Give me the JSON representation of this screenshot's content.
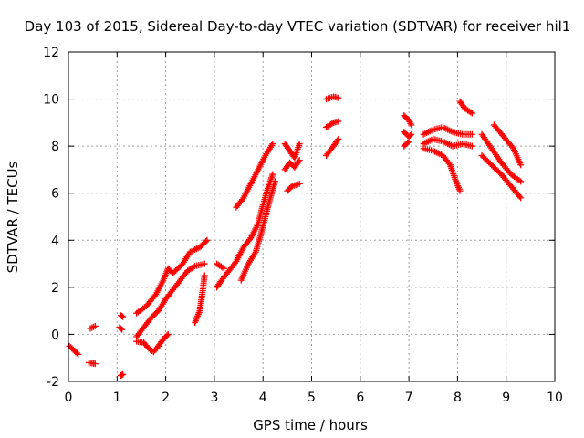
{
  "chart_data": {
    "type": "scatter",
    "title": "Day 103 of 2015, Sidereal Day-to-day VTEC variation (SDTVAR) for receiver hil1",
    "xlabel": "GPS time / hours",
    "ylabel": "SDTVAR / TECUs",
    "xlim": [
      0,
      10
    ],
    "ylim": [
      -2,
      12
    ],
    "xticks": [
      "0",
      "1",
      "2",
      "3",
      "4",
      "5",
      "6",
      "7",
      "8",
      "9",
      "10"
    ],
    "yticks": [
      "-2",
      "0",
      "2",
      "4",
      "6",
      "8",
      "10",
      "12"
    ],
    "grid": true,
    "marker": "+",
    "series": [
      {
        "name": "SDTVAR",
        "color": "#ff0000",
        "segments": [
          [
            [
              0.02,
              -0.5
            ],
            [
              0.1,
              -0.65
            ],
            [
              0.2,
              -0.85
            ]
          ],
          [
            [
              0.45,
              0.25
            ],
            [
              0.55,
              0.35
            ]
          ],
          [
            [
              0.42,
              -1.2
            ],
            [
              0.55,
              -1.25
            ]
          ],
          [
            [
              1.08,
              0.8
            ],
            [
              1.12,
              0.75
            ]
          ],
          [
            [
              1.05,
              0.3
            ],
            [
              1.1,
              0.2
            ]
          ],
          [
            [
              1.08,
              -1.75
            ],
            [
              1.12,
              -1.7
            ]
          ],
          [
            [
              1.4,
              0.9
            ],
            [
              1.6,
              1.2
            ],
            [
              1.8,
              1.7
            ],
            [
              1.95,
              2.3
            ],
            [
              2.05,
              2.8
            ],
            [
              2.15,
              2.6
            ],
            [
              2.35,
              3.0
            ],
            [
              2.5,
              3.5
            ],
            [
              2.7,
              3.7
            ],
            [
              2.85,
              4.0
            ]
          ],
          [
            [
              1.4,
              -0.1
            ],
            [
              1.55,
              0.3
            ],
            [
              1.7,
              0.7
            ],
            [
              1.85,
              1.0
            ],
            [
              2.0,
              1.5
            ],
            [
              2.15,
              1.9
            ],
            [
              2.3,
              2.3
            ],
            [
              2.45,
              2.7
            ],
            [
              2.6,
              2.9
            ],
            [
              2.8,
              3.0
            ]
          ],
          [
            [
              1.4,
              -0.3
            ],
            [
              1.55,
              -0.35
            ],
            [
              1.65,
              -0.6
            ],
            [
              1.75,
              -0.75
            ],
            [
              1.85,
              -0.5
            ],
            [
              1.95,
              -0.2
            ],
            [
              2.05,
              0.0
            ]
          ],
          [
            [
              2.6,
              0.5
            ],
            [
              2.7,
              1.0
            ],
            [
              2.75,
              1.7
            ],
            [
              2.8,
              2.5
            ]
          ],
          [
            [
              3.05,
              2.0
            ],
            [
              3.15,
              2.3
            ],
            [
              3.3,
              2.7
            ],
            [
              3.45,
              3.1
            ],
            [
              3.6,
              3.7
            ],
            [
              3.75,
              4.1
            ],
            [
              3.9,
              4.7
            ],
            [
              4.0,
              5.5
            ],
            [
              4.1,
              6.2
            ],
            [
              4.2,
              6.8
            ]
          ],
          [
            [
              3.05,
              3.0
            ],
            [
              3.2,
              2.8
            ]
          ],
          [
            [
              3.45,
              5.4
            ],
            [
              3.6,
              5.8
            ],
            [
              3.75,
              6.4
            ],
            [
              3.9,
              7.0
            ],
            [
              4.05,
              7.6
            ],
            [
              4.2,
              8.1
            ]
          ],
          [
            [
              3.55,
              2.3
            ],
            [
              3.7,
              3.0
            ],
            [
              3.85,
              3.5
            ],
            [
              3.95,
              4.2
            ],
            [
              4.05,
              5.0
            ],
            [
              4.15,
              5.8
            ],
            [
              4.25,
              6.5
            ]
          ],
          [
            [
              4.45,
              8.1
            ],
            [
              4.55,
              7.8
            ],
            [
              4.65,
              7.5
            ],
            [
              4.75,
              8.1
            ]
          ],
          [
            [
              4.45,
              7.0
            ],
            [
              4.55,
              7.3
            ],
            [
              4.65,
              7.1
            ],
            [
              4.75,
              7.4
            ]
          ],
          [
            [
              4.5,
              6.1
            ],
            [
              4.6,
              6.3
            ],
            [
              4.75,
              6.4
            ]
          ],
          [
            [
              5.3,
              10.0
            ],
            [
              5.45,
              10.1
            ],
            [
              5.55,
              10.05
            ]
          ],
          [
            [
              5.3,
              8.8
            ],
            [
              5.45,
              9.0
            ],
            [
              5.55,
              9.05
            ]
          ],
          [
            [
              5.3,
              7.6
            ],
            [
              5.45,
              8.0
            ],
            [
              5.55,
              8.3
            ]
          ],
          [
            [
              6.9,
              9.3
            ],
            [
              7.0,
              9.1
            ],
            [
              7.05,
              8.9
            ]
          ],
          [
            [
              6.9,
              8.6
            ],
            [
              7.0,
              8.4
            ],
            [
              7.05,
              8.5
            ]
          ],
          [
            [
              6.9,
              8.0
            ],
            [
              7.0,
              8.2
            ]
          ],
          [
            [
              7.3,
              8.5
            ],
            [
              7.5,
              8.7
            ],
            [
              7.7,
              8.8
            ],
            [
              7.9,
              8.6
            ],
            [
              8.1,
              8.5
            ],
            [
              8.3,
              8.5
            ]
          ],
          [
            [
              7.3,
              8.1
            ],
            [
              7.5,
              8.3
            ],
            [
              7.7,
              8.2
            ],
            [
              7.9,
              8.0
            ],
            [
              8.1,
              8.1
            ],
            [
              8.3,
              8.0
            ]
          ],
          [
            [
              7.3,
              7.9
            ],
            [
              7.5,
              7.8
            ],
            [
              7.7,
              7.6
            ],
            [
              7.85,
              7.2
            ],
            [
              7.95,
              6.6
            ],
            [
              8.05,
              6.1
            ]
          ],
          [
            [
              8.05,
              9.9
            ],
            [
              8.15,
              9.6
            ],
            [
              8.3,
              9.4
            ]
          ],
          [
            [
              8.5,
              8.5
            ],
            [
              8.7,
              7.9
            ],
            [
              8.9,
              7.3
            ],
            [
              9.1,
              6.8
            ],
            [
              9.3,
              6.5
            ]
          ],
          [
            [
              8.5,
              7.6
            ],
            [
              8.7,
              7.2
            ],
            [
              8.9,
              6.8
            ],
            [
              9.1,
              6.3
            ],
            [
              9.3,
              5.8
            ]
          ],
          [
            [
              8.75,
              8.9
            ],
            [
              8.95,
              8.4
            ],
            [
              9.15,
              7.9
            ],
            [
              9.3,
              7.2
            ]
          ]
        ]
      }
    ]
  }
}
